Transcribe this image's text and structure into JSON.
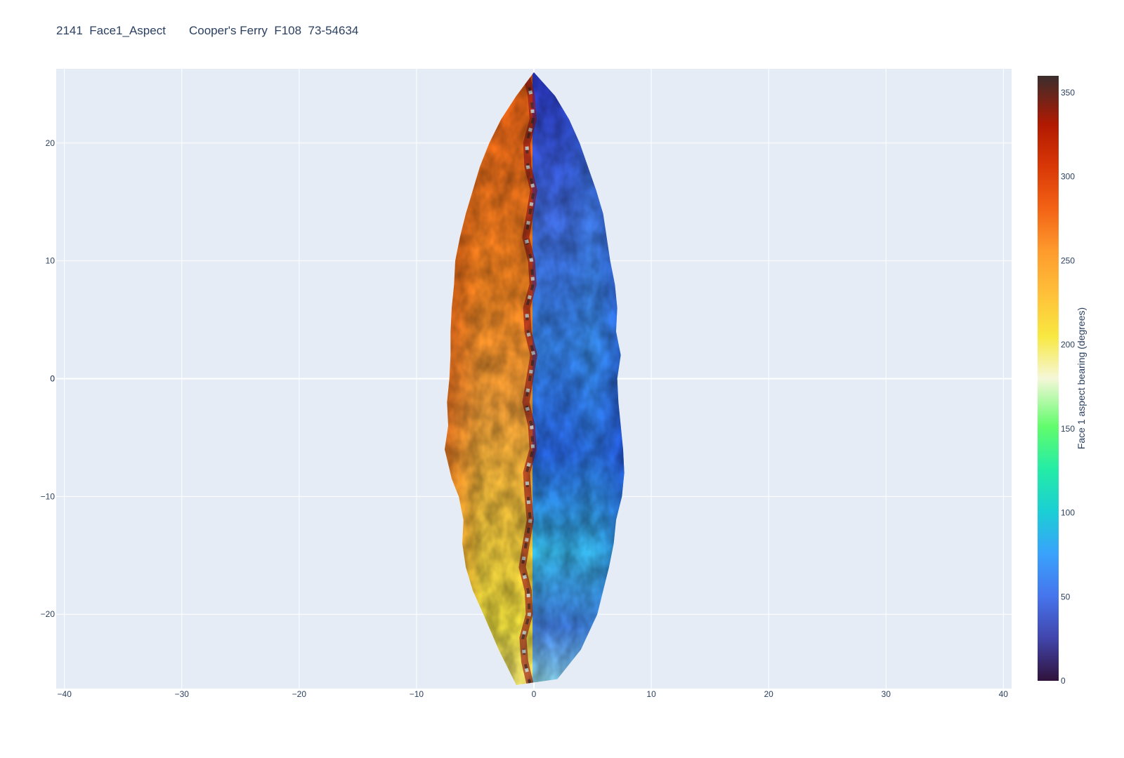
{
  "chart_data": {
    "type": "heatmap",
    "title": "2141  Face1_Aspect       Cooper's Ferry  F108  73-54634",
    "xlabel": "",
    "ylabel": "",
    "xlim": [
      -40.7,
      40.7
    ],
    "ylim": [
      -26.3,
      26.3
    ],
    "xticks": [
      -40,
      -30,
      -20,
      -10,
      0,
      10,
      20,
      30,
      40
    ],
    "yticks": [
      -20,
      -10,
      0,
      10,
      20
    ],
    "grid": true,
    "colorbar": {
      "title": "Face 1 aspect bearing (degrees)",
      "range": [
        0,
        360
      ],
      "ticks": [
        0,
        50,
        100,
        150,
        200,
        250,
        300,
        350
      ],
      "colorscale": [
        [
          0.0,
          "#30123b"
        ],
        [
          0.07,
          "#4145ab"
        ],
        [
          0.14,
          "#4675ed"
        ],
        [
          0.21,
          "#39a2fc"
        ],
        [
          0.28,
          "#1bcfd4"
        ],
        [
          0.35,
          "#24eca6"
        ],
        [
          0.42,
          "#61fc6c"
        ],
        [
          0.5,
          "#f5f7d8"
        ],
        [
          0.57,
          "#f8e840"
        ],
        [
          0.64,
          "#ffc039"
        ],
        [
          0.71,
          "#fe9b2d"
        ],
        [
          0.78,
          "#f36315"
        ],
        [
          0.85,
          "#d93806"
        ],
        [
          0.92,
          "#b11901"
        ],
        [
          1.0,
          "#3a2d2d"
        ]
      ]
    },
    "outline": {
      "x_left": [
        0.0,
        -1.5,
        -2.8,
        -3.8,
        -4.6,
        -5.2,
        -5.8,
        -6.3,
        -6.7,
        -6.8,
        -7.0,
        -7.1,
        -7.1,
        -7.2,
        -7.4,
        -7.3,
        -7.6,
        -7.0,
        -6.4,
        -6.0,
        -6.1,
        -5.8,
        -5.2,
        -4.3,
        -3.0,
        -1.5
      ],
      "y_left": [
        26.0,
        24.0,
        22.0,
        20.0,
        18.0,
        16.0,
        14.0,
        12.0,
        10.0,
        8.0,
        6.0,
        4.0,
        2.0,
        0.0,
        -2.0,
        -4.0,
        -6.0,
        -8.5,
        -10.0,
        -12.0,
        -14.0,
        -16.0,
        -18.0,
        -20.0,
        -23.0,
        -26.0
      ],
      "x_right": [
        0.0,
        1.8,
        3.0,
        3.9,
        4.6,
        5.3,
        5.9,
        6.2,
        6.5,
        6.9,
        7.1,
        7.0,
        7.4,
        7.1,
        7.2,
        7.4,
        7.6,
        7.7,
        7.5,
        7.0,
        6.8,
        6.4,
        5.9,
        5.4,
        4.0,
        2.0
      ],
      "y_right": [
        26.0,
        24.0,
        22.0,
        20.0,
        18.0,
        16.0,
        14.0,
        12.0,
        10.0,
        8.0,
        6.0,
        4.0,
        2.0,
        0.0,
        -2.0,
        -4.0,
        -6.0,
        -8.0,
        -10.0,
        -12.0,
        -14.0,
        -16.0,
        -18.0,
        -20.0,
        -23.0,
        -25.5
      ]
    },
    "aspect_regions": [
      {
        "face": "left",
        "aspect_start": 300,
        "aspect_end": 250
      },
      {
        "face": "right",
        "aspect_start": 60,
        "aspect_end": 130
      },
      {
        "face": "midline",
        "aspect_start": 340,
        "aspect_end": 20
      }
    ]
  }
}
